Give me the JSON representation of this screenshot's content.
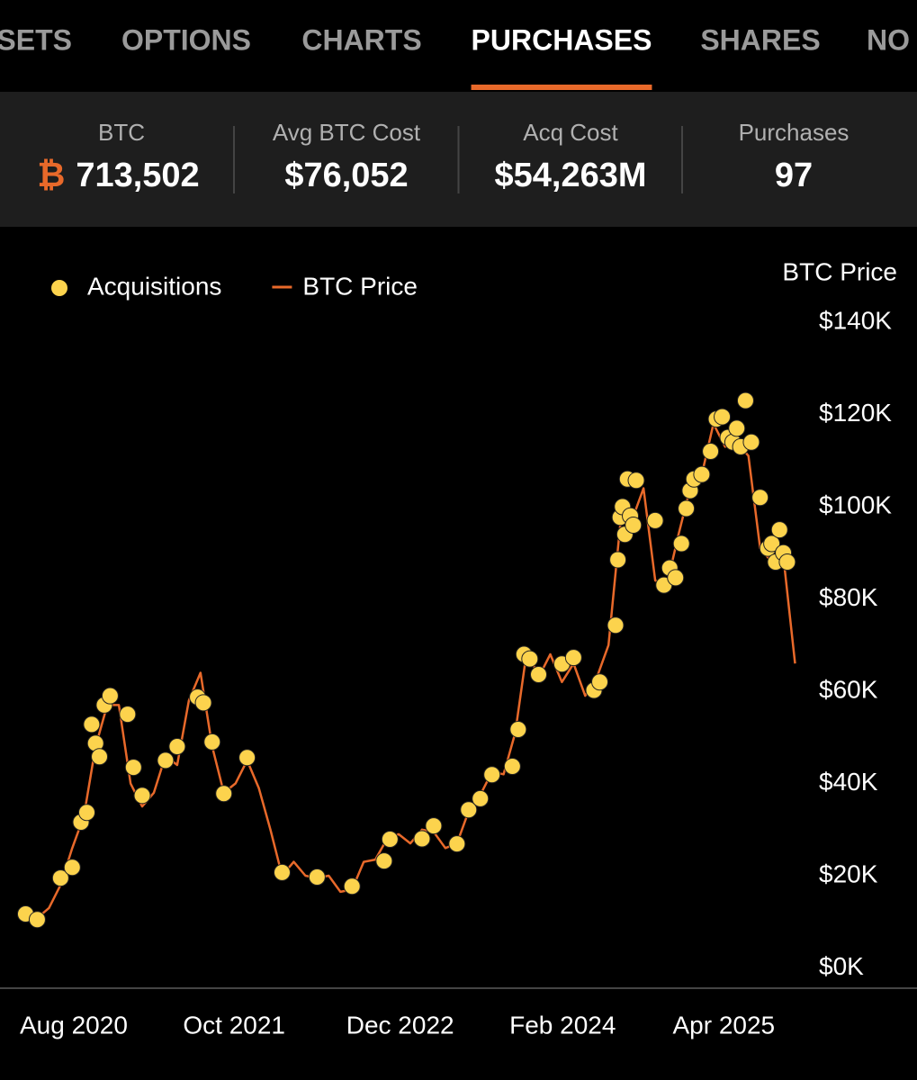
{
  "tabs": [
    "ASSETS",
    "OPTIONS",
    "CHARTS",
    "PURCHASES",
    "SHARES",
    "NO"
  ],
  "active_tab": 3,
  "stats": [
    {
      "label": "BTC",
      "symbol": "₿",
      "value": "713,502"
    },
    {
      "label": "Avg BTC Cost",
      "value": "$76,052"
    },
    {
      "label": "Acq Cost",
      "value": "$54,263M"
    },
    {
      "label": "Purchases",
      "value": "97"
    }
  ],
  "chart_data": {
    "type": "line",
    "y_axis_label": "BTC Price",
    "ylim": [
      -4000,
      140000
    ],
    "yticks": [
      {
        "value": 0,
        "label": "$0K"
      },
      {
        "value": 20000,
        "label": "$20K"
      },
      {
        "value": 40000,
        "label": "$40K"
      },
      {
        "value": 60000,
        "label": "$60K"
      },
      {
        "value": 80000,
        "label": "$80K"
      },
      {
        "value": 100000,
        "label": "$100K"
      },
      {
        "value": 120000,
        "label": "$120K"
      },
      {
        "value": 140000,
        "label": "$140K"
      }
    ],
    "xlim": [
      "2020-08",
      "2026-02"
    ],
    "xticks": [
      {
        "value": "2020-08",
        "label": "Aug 2020"
      },
      {
        "value": "2021-10",
        "label": "Oct 2021"
      },
      {
        "value": "2022-12",
        "label": "Dec 2022"
      },
      {
        "value": "2024-02",
        "label": "Feb 2024"
      },
      {
        "value": "2025-04",
        "label": "Apr 2025"
      }
    ],
    "legend": "top-left",
    "series": [
      {
        "name": "Acquisitions",
        "type": "scatter",
        "color": "#fcd34d",
        "x": [
          "2020-08",
          "2020-09",
          "2020-11",
          "2020-12",
          "2021-01",
          "2021-01",
          "2021-02",
          "2021-02",
          "2021-02",
          "2021-03",
          "2021-03",
          "2021-05",
          "2021-05",
          "2021-06",
          "2021-08",
          "2021-09",
          "2021-11",
          "2021-11",
          "2021-12",
          "2022-01",
          "2022-03",
          "2022-06",
          "2022-09",
          "2022-12",
          "2023-03",
          "2023-03",
          "2023-06",
          "2023-07",
          "2023-09",
          "2023-10",
          "2023-11",
          "2023-12",
          "2024-02",
          "2024-02",
          "2024-03",
          "2024-03",
          "2024-04",
          "2024-06",
          "2024-07",
          "2024-09",
          "2024-09",
          "2024-11",
          "2024-11",
          "2024-11",
          "2024-11",
          "2024-11",
          "2024-12",
          "2024-12",
          "2024-12",
          "2024-12",
          "2025-02",
          "2025-03",
          "2025-03",
          "2025-04",
          "2025-04",
          "2025-05",
          "2025-05",
          "2025-05",
          "2025-06",
          "2025-07",
          "2025-07",
          "2025-08",
          "2025-08",
          "2025-09",
          "2025-09",
          "2025-09",
          "2025-10",
          "2025-10",
          "2025-11",
          "2025-12",
          "2025-12",
          "2025-12",
          "2026-01",
          "2026-01",
          "2026-01"
        ],
        "values": [
          11700,
          10500,
          19500,
          21800,
          31600,
          33700,
          52800,
          48700,
          45800,
          57000,
          59000,
          55000,
          43500,
          37400,
          45000,
          48000,
          58700,
          57500,
          49000,
          37800,
          45600,
          20700,
          19700,
          17700,
          23200,
          27900,
          28000,
          30800,
          26900,
          34300,
          36700,
          41900,
          43700,
          51700,
          68000,
          67000,
          63600,
          65900,
          67300,
          60200,
          62000,
          74300,
          88500,
          97700,
          100000,
          94000,
          106000,
          98000,
          96000,
          105700,
          97000,
          83000,
          86700,
          84600,
          92000,
          99600,
          103500,
          106000,
          107000,
          112000,
          119000,
          119500,
          115000,
          114000,
          117000,
          113000,
          123000,
          114000,
          102000,
          91000,
          92000,
          88000,
          95000,
          90000,
          88000
        ]
      },
      {
        "name": "BTC Price",
        "type": "line",
        "color": "#e8692a",
        "x": [
          "2020-08",
          "2020-09",
          "2020-10",
          "2020-11",
          "2020-12",
          "2021-01",
          "2021-02",
          "2021-03",
          "2021-04",
          "2021-05",
          "2021-06",
          "2021-07",
          "2021-08",
          "2021-09",
          "2021-10",
          "2021-11",
          "2021-12",
          "2022-01",
          "2022-02",
          "2022-03",
          "2022-04",
          "2022-05",
          "2022-06",
          "2022-07",
          "2022-08",
          "2022-09",
          "2022-10",
          "2022-11",
          "2022-12",
          "2023-01",
          "2023-02",
          "2023-03",
          "2023-04",
          "2023-05",
          "2023-06",
          "2023-07",
          "2023-08",
          "2023-09",
          "2023-10",
          "2023-11",
          "2023-12",
          "2024-01",
          "2024-02",
          "2024-03",
          "2024-04",
          "2024-05",
          "2024-06",
          "2024-07",
          "2024-08",
          "2024-09",
          "2024-10",
          "2024-11",
          "2024-12",
          "2025-01",
          "2025-02",
          "2025-03",
          "2025-04",
          "2025-05",
          "2025-06",
          "2025-07",
          "2025-08",
          "2025-09",
          "2025-10",
          "2025-11",
          "2025-12",
          "2026-01",
          "2026-02"
        ],
        "values": [
          11500,
          10800,
          13000,
          18000,
          26000,
          33000,
          48000,
          57000,
          57000,
          40000,
          35000,
          38000,
          46000,
          44000,
          58000,
          64000,
          48000,
          38000,
          40000,
          45000,
          39000,
          30000,
          20000,
          23000,
          20000,
          19500,
          20000,
          16500,
          17000,
          23000,
          23500,
          28000,
          29000,
          27000,
          30000,
          29500,
          26000,
          27000,
          34000,
          37500,
          42500,
          42000,
          51000,
          69000,
          63000,
          68000,
          62000,
          66000,
          59000,
          63000,
          70000,
          96000,
          97000,
          104000,
          84000,
          83000,
          94000,
          104000,
          107000,
          118000,
          113000,
          114000,
          111000,
          91000,
          88000,
          89000,
          66000
        ]
      }
    ]
  }
}
